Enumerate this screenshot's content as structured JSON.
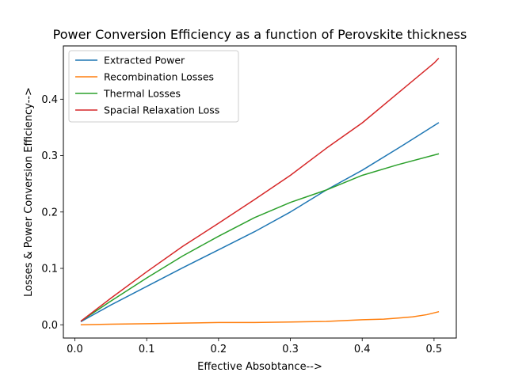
{
  "chart_data": {
    "type": "line",
    "title": "Power Conversion Efficiency as a function of Perovskite thickness",
    "xlabel": "Effective Absobtance-->",
    "ylabel": "Losses & Power Conversion Efficiency-->",
    "xlim": [
      -0.016,
      0.531
    ],
    "ylim": [
      -0.0235,
      0.4945
    ],
    "xticks": [
      0.0,
      0.1,
      0.2,
      0.3,
      0.4,
      0.5
    ],
    "xtick_labels": [
      "0.0",
      "0.1",
      "0.2",
      "0.3",
      "0.4",
      "0.5"
    ],
    "yticks": [
      0.0,
      0.1,
      0.2,
      0.3,
      0.4
    ],
    "ytick_labels": [
      "0.0",
      "0.1",
      "0.2",
      "0.3",
      "0.4"
    ],
    "grid": false,
    "legend_position": "top-left",
    "series": [
      {
        "name": "Extracted Power",
        "color": "#1f77b4",
        "x": [
          0.009,
          0.05,
          0.1,
          0.15,
          0.2,
          0.25,
          0.3,
          0.35,
          0.4,
          0.45,
          0.506
        ],
        "y": [
          0.006,
          0.035,
          0.068,
          0.101,
          0.133,
          0.165,
          0.2,
          0.239,
          0.274,
          0.313,
          0.358
        ]
      },
      {
        "name": "Recombination Losses",
        "color": "#ff7f0e",
        "x": [
          0.009,
          0.05,
          0.1,
          0.15,
          0.2,
          0.25,
          0.3,
          0.35,
          0.4,
          0.43,
          0.45,
          0.47,
          0.49,
          0.506
        ],
        "y": [
          0.0,
          0.001,
          0.002,
          0.003,
          0.004,
          0.004,
          0.005,
          0.006,
          0.009,
          0.01,
          0.012,
          0.014,
          0.018,
          0.023
        ]
      },
      {
        "name": "Thermal Losses",
        "color": "#2ca02c",
        "x": [
          0.009,
          0.05,
          0.1,
          0.15,
          0.2,
          0.25,
          0.3,
          0.35,
          0.4,
          0.45,
          0.5,
          0.506
        ],
        "y": [
          0.007,
          0.042,
          0.083,
          0.122,
          0.157,
          0.19,
          0.217,
          0.239,
          0.265,
          0.284,
          0.301,
          0.303
        ]
      },
      {
        "name": "Spacial Relaxation Loss",
        "color": "#d62728",
        "x": [
          0.009,
          0.05,
          0.1,
          0.15,
          0.2,
          0.25,
          0.3,
          0.35,
          0.4,
          0.45,
          0.5,
          0.506
        ],
        "y": [
          0.007,
          0.047,
          0.094,
          0.139,
          0.18,
          0.222,
          0.265,
          0.313,
          0.358,
          0.411,
          0.464,
          0.472
        ]
      }
    ]
  }
}
